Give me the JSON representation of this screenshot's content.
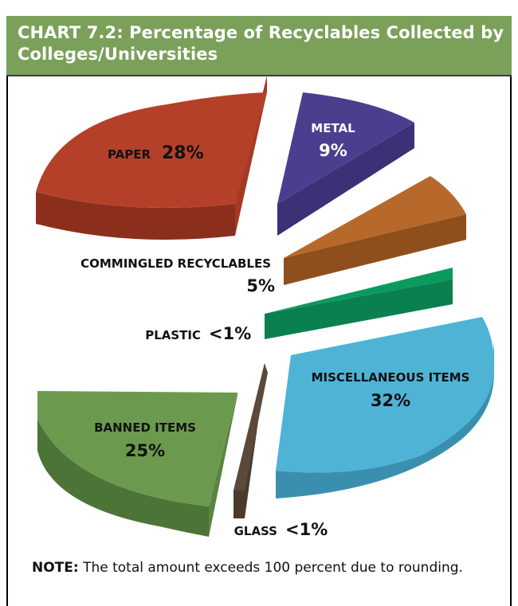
{
  "title": "CHART 7.2: Percentage of Recyclables Collected by Colleges/Universities",
  "note": {
    "label": "NOTE:",
    "text": " The total amount exceeds 100 percent due to rounding."
  },
  "chart_data": {
    "type": "pie",
    "style": "3d-exploded",
    "slices": [
      {
        "category": "PAPER",
        "value_label": "28%",
        "value": 28,
        "color": "#b5402a"
      },
      {
        "category": "METAL",
        "value_label": "9%",
        "value": 9,
        "color": "#4a3f8f"
      },
      {
        "category": "COMMINGLED RECYCLABLES",
        "value_label": "5%",
        "value": 5,
        "color": "#b6692a"
      },
      {
        "category": "PLASTIC",
        "value_label": "<1%",
        "value": 1,
        "color": "#0b9a5d"
      },
      {
        "category": "MISCELLANEOUS ITEMS",
        "value_label": "32%",
        "value": 32,
        "color": "#4fb3d6"
      },
      {
        "category": "GLASS",
        "value_label": "<1%",
        "value": 1,
        "color": "#5b4a3c"
      },
      {
        "category": "BANNED ITEMS",
        "value_label": "25%",
        "value": 25,
        "color": "#6b9a4e"
      }
    ]
  }
}
